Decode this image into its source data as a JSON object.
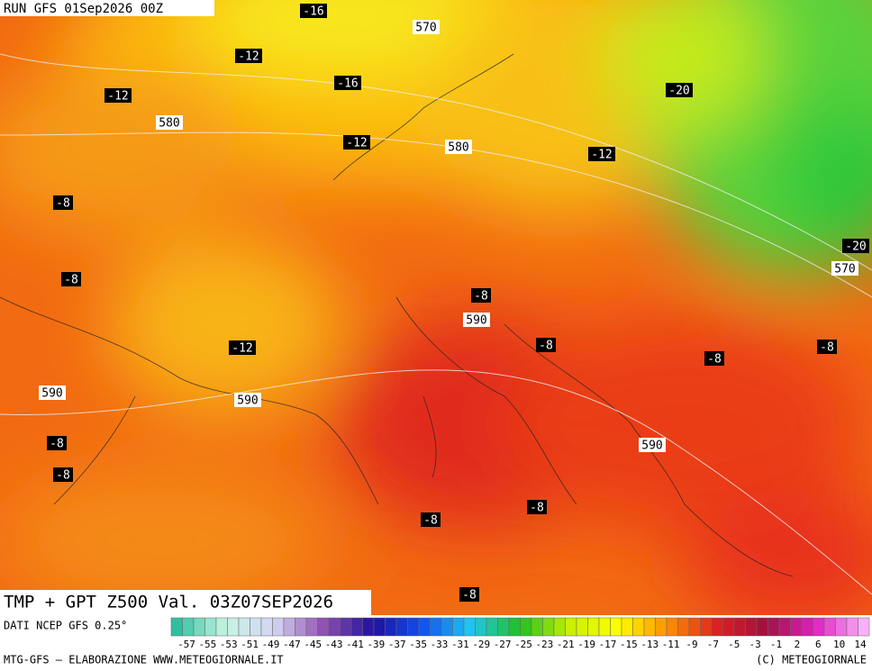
{
  "header": {
    "run": "RUN GFS 01Sep2026 00Z"
  },
  "map": {
    "labels": [
      "-16",
      "570",
      "-12",
      "-12",
      "-16",
      "580",
      "-12",
      "580",
      "-12",
      "-20",
      "-8",
      "-8",
      "-12",
      "-8",
      "590",
      "-8",
      "-8",
      "-8",
      "-20",
      "570",
      "590",
      "590",
      "-8",
      "-8",
      "590",
      "-8",
      "-8",
      "-8"
    ]
  },
  "footer": {
    "title": "TMP + GPT Z500 Val. 03Z07SEP2026",
    "source": "DATI NCEP GFS 0.25°",
    "credit": "MTG-GFS — ELABORAZIONE WWW.METEOGIORNALE.IT",
    "copyright": "(C) METEOGIORNALE"
  },
  "colorbar": {
    "labels": [
      "-57",
      "-55",
      "-53",
      "-51",
      "-49",
      "-47",
      "-45",
      "-43",
      "-41",
      "-39",
      "-37",
      "-35",
      "-33",
      "-31",
      "-29",
      "-27",
      "-25",
      "-23",
      "-21",
      "-19",
      "-17",
      "-15",
      "-13",
      "-11",
      "-9",
      "-7",
      "-5",
      "-3",
      "-1",
      "2",
      "6",
      "10",
      "14"
    ]
  }
}
